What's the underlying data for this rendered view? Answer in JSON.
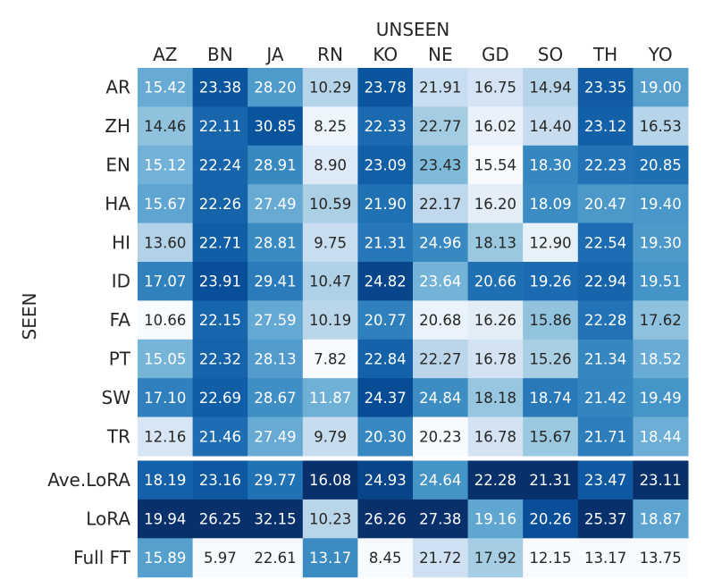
{
  "chart_data": {
    "type": "heatmap",
    "title": "",
    "xlabel": "UNSEEN",
    "ylabel": "SEEN",
    "columns": [
      "AZ",
      "BN",
      "JA",
      "RN",
      "KO",
      "NE",
      "GD",
      "SO",
      "TH",
      "YO"
    ],
    "rows": [
      "AR",
      "ZH",
      "EN",
      "HA",
      "HI",
      "ID",
      "FA",
      "PT",
      "SW",
      "TR",
      "Ave.LoRA",
      "LoRA",
      "Full FT"
    ],
    "values": [
      [
        "15.42",
        "23.38",
        "28.20",
        "10.29",
        "23.78",
        "21.91",
        "16.75",
        "14.94",
        "23.35",
        "19.00"
      ],
      [
        "14.46",
        "22.11",
        "30.85",
        "8.25",
        "22.33",
        "22.77",
        "16.02",
        "14.40",
        "23.12",
        "16.53"
      ],
      [
        "15.12",
        "22.24",
        "28.91",
        "8.90",
        "23.09",
        "23.43",
        "15.54",
        "18.30",
        "22.23",
        "20.85"
      ],
      [
        "15.67",
        "22.26",
        "27.49",
        "10.59",
        "21.90",
        "22.17",
        "16.20",
        "18.09",
        "20.47",
        "19.40"
      ],
      [
        "13.60",
        "22.71",
        "28.81",
        "9.75",
        "21.31",
        "24.96",
        "18.13",
        "12.90",
        "22.54",
        "19.30"
      ],
      [
        "17.07",
        "23.91",
        "29.41",
        "10.47",
        "24.82",
        "23.64",
        "20.66",
        "19.26",
        "22.94",
        "19.51"
      ],
      [
        "10.66",
        "22.15",
        "27.59",
        "10.19",
        "20.77",
        "20.68",
        "16.26",
        "15.86",
        "22.28",
        "17.62"
      ],
      [
        "15.05",
        "22.32",
        "28.13",
        "7.82",
        "22.84",
        "22.27",
        "16.78",
        "15.26",
        "21.34",
        "18.52"
      ],
      [
        "17.10",
        "22.69",
        "28.67",
        "11.87",
        "24.37",
        "24.84",
        "18.18",
        "18.74",
        "21.42",
        "19.49"
      ],
      [
        "12.16",
        "21.46",
        "27.49",
        "9.79",
        "20.30",
        "20.23",
        "16.78",
        "15.67",
        "21.71",
        "18.44"
      ],
      [
        "18.19",
        "23.16",
        "29.77",
        "16.08",
        "24.93",
        "24.64",
        "22.28",
        "21.31",
        "23.47",
        "23.11"
      ],
      [
        "19.94",
        "26.25",
        "32.15",
        "10.23",
        "26.26",
        "27.38",
        "19.16",
        "20.26",
        "25.37",
        "18.87"
      ],
      [
        "15.89",
        "5.97",
        "22.61",
        "13.17",
        "8.45",
        "21.72",
        "17.92",
        "12.15",
        "13.17",
        "13.75"
      ]
    ],
    "color_scale": "Blues, normalized per column",
    "colors": {
      "light": "#f7fbff",
      "mid": "#6baed6",
      "dark": "#08306b"
    }
  }
}
